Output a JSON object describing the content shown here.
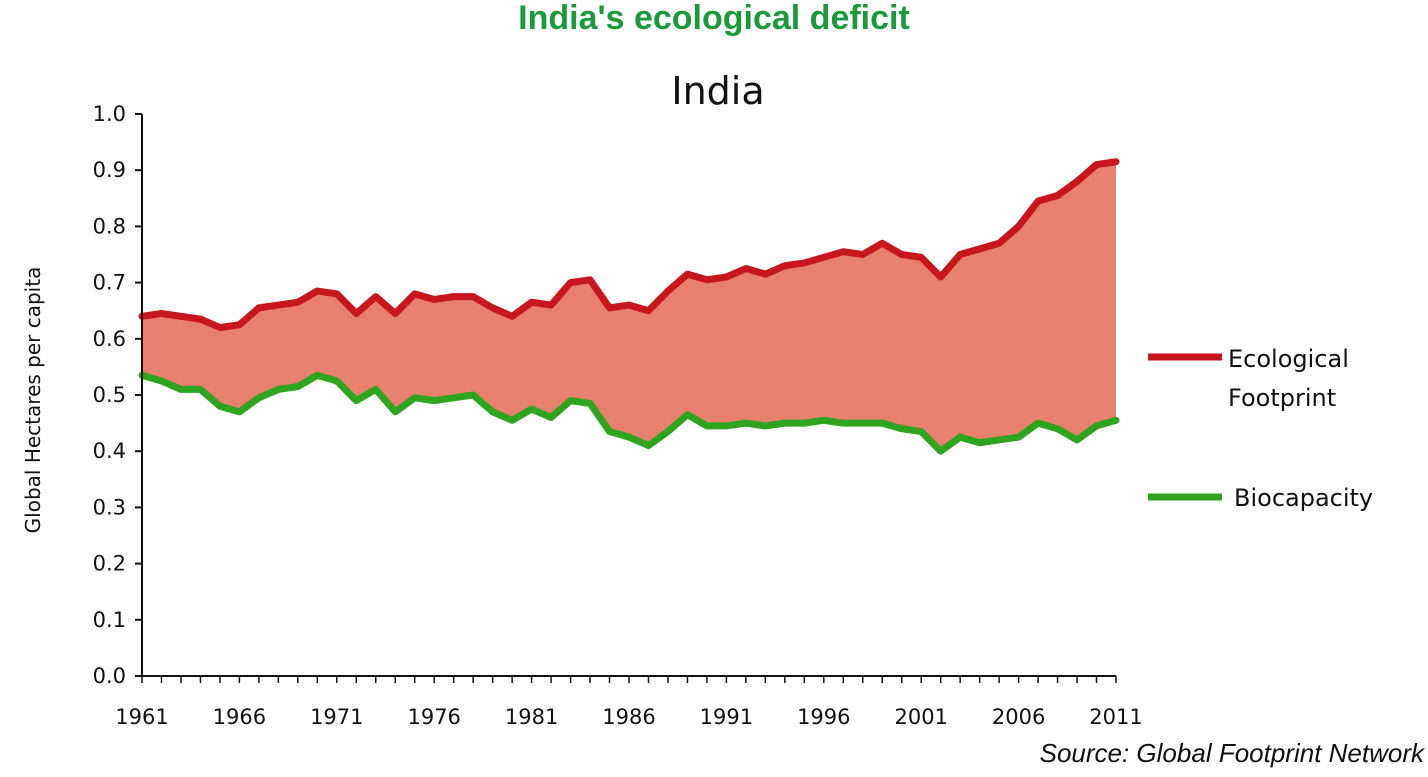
{
  "header": {
    "title": "India's ecological deficit"
  },
  "footer": {
    "source": "Source: Global Footprint Network"
  },
  "colors": {
    "footprint": "#c8161d",
    "biocapacity": "#2fa51f",
    "deficit_fill": "#e7806c",
    "title_green": "#1a9a3a"
  },
  "chart_data": {
    "type": "area",
    "title": "India",
    "xlabel": "",
    "ylabel": "Global Hectares per capita",
    "xlim": [
      1961,
      2011
    ],
    "ylim": [
      0.0,
      1.0
    ],
    "xticks": [
      "1961",
      "1966",
      "1971",
      "1976",
      "1981",
      "1986",
      "1991",
      "1996",
      "2001",
      "2006",
      "2011"
    ],
    "yticks": [
      "0.0",
      "0.1",
      "0.2",
      "0.3",
      "0.4",
      "0.5",
      "0.6",
      "0.7",
      "0.8",
      "0.9",
      "1.0"
    ],
    "legend_position": "right",
    "grid": false,
    "x": [
      1961,
      1962,
      1963,
      1964,
      1965,
      1966,
      1967,
      1968,
      1969,
      1970,
      1971,
      1972,
      1973,
      1974,
      1975,
      1976,
      1977,
      1978,
      1979,
      1980,
      1981,
      1982,
      1983,
      1984,
      1985,
      1986,
      1987,
      1988,
      1989,
      1990,
      1991,
      1992,
      1993,
      1994,
      1995,
      1996,
      1997,
      1998,
      1999,
      2000,
      2001,
      2002,
      2003,
      2004,
      2005,
      2006,
      2007,
      2008,
      2009,
      2010,
      2011
    ],
    "series": [
      {
        "name": "Ecological Footprint",
        "values": [
          0.64,
          0.645,
          0.64,
          0.635,
          0.62,
          0.625,
          0.655,
          0.66,
          0.665,
          0.685,
          0.68,
          0.645,
          0.675,
          0.645,
          0.68,
          0.67,
          0.675,
          0.675,
          0.655,
          0.64,
          0.665,
          0.66,
          0.7,
          0.705,
          0.655,
          0.66,
          0.65,
          0.685,
          0.715,
          0.705,
          0.71,
          0.725,
          0.715,
          0.73,
          0.735,
          0.745,
          0.755,
          0.75,
          0.77,
          0.75,
          0.745,
          0.71,
          0.75,
          0.76,
          0.77,
          0.8,
          0.845,
          0.855,
          0.88,
          0.91,
          0.915
        ]
      },
      {
        "name": "Biocapacity",
        "values": [
          0.535,
          0.525,
          0.51,
          0.51,
          0.48,
          0.47,
          0.495,
          0.51,
          0.515,
          0.535,
          0.525,
          0.49,
          0.51,
          0.47,
          0.495,
          0.49,
          0.495,
          0.5,
          0.47,
          0.455,
          0.475,
          0.46,
          0.49,
          0.485,
          0.435,
          0.425,
          0.41,
          0.435,
          0.465,
          0.445,
          0.445,
          0.45,
          0.445,
          0.45,
          0.45,
          0.455,
          0.45,
          0.45,
          0.45,
          0.44,
          0.435,
          0.4,
          0.425,
          0.415,
          0.42,
          0.425,
          0.45,
          0.44,
          0.42,
          0.445,
          0.455
        ]
      }
    ]
  }
}
